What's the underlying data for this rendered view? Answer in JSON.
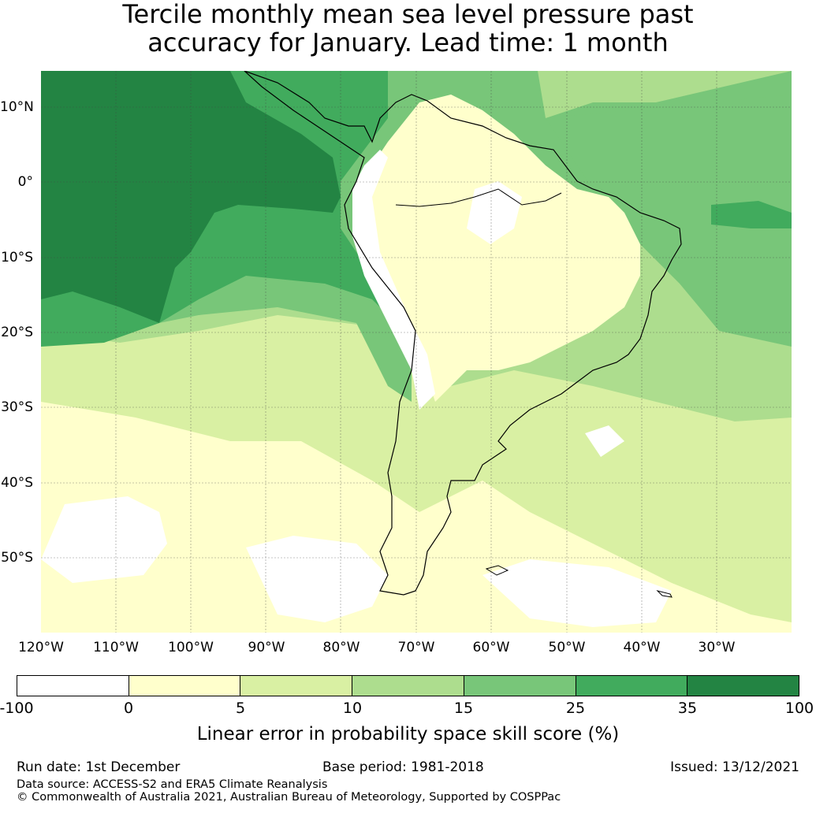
{
  "title": {
    "line1": "Tercile monthly mean sea level pressure past",
    "line2": "accuracy for January. Lead time: 1 month"
  },
  "map": {
    "lat_labels": [
      "10°N",
      "0°",
      "10°S",
      "20°S",
      "30°S",
      "40°S",
      "50°S"
    ],
    "lon_labels": [
      "120°W",
      "110°W",
      "100°W",
      "90°W",
      "80°W",
      "70°W",
      "60°W",
      "50°W",
      "40°W",
      "30°W"
    ],
    "gridlines": true,
    "coastline_color": "#000000"
  },
  "colorbar": {
    "ticks": [
      "-100",
      "0",
      "5",
      "10",
      "15",
      "25",
      "35",
      "100"
    ],
    "colors": [
      "#ffffff",
      "#ffffcc",
      "#d9f0a3",
      "#addd8e",
      "#78c679",
      "#41ab5d",
      "#238443"
    ],
    "label": "Linear error in probability space skill score (%)"
  },
  "footer": {
    "run_date": "Run date: 1st December",
    "base_period": "Base period: 1981-2018",
    "issued": "Issued: 13/12/2021",
    "data_source": "Data source: ACCESS-S2 and ERA5 Climate Reanalysis",
    "copyright": "© Commonwealth of Australia 2021, Australian Bureau of Meteorology, Supported by COSPPac"
  }
}
